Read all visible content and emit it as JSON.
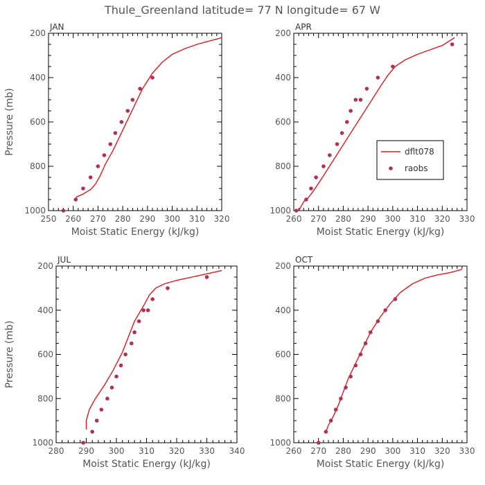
{
  "figure": {
    "title": "Thule_Greenland  latitude= 77 N longitude= 67 W",
    "ylabel": "Pressure (mb)",
    "xlabel": "Moist Static Energy (kJ/kg)",
    "colors": {
      "model": "#e8141c",
      "obs": "#b0305a",
      "axis": "#000000",
      "text": "#555555"
    }
  },
  "legend": {
    "model": "dflt078",
    "obs": "raobs",
    "panel": "APR"
  },
  "chart_data": [
    {
      "type": "line",
      "title": "JAN",
      "xlabel": "Moist Static Energy (kJ/kg)",
      "ylabel": "Pressure (mb)",
      "xlim": [
        250,
        320
      ],
      "ylim": [
        1000,
        200
      ],
      "xticks": [
        250,
        260,
        270,
        280,
        290,
        300,
        310,
        320
      ],
      "yticks": [
        200,
        400,
        600,
        800,
        1000
      ],
      "series": [
        {
          "name": "dflt078",
          "style": "line",
          "x": [
            261,
            264,
            267,
            269,
            271,
            273,
            276,
            279,
            282,
            285,
            288,
            292,
            296,
            300,
            305,
            310,
            315,
            320
          ],
          "y": [
            940,
            925,
            905,
            880,
            840,
            790,
            730,
            660,
            590,
            520,
            450,
            380,
            330,
            295,
            270,
            250,
            235,
            220
          ]
        },
        {
          "name": "raobs",
          "style": "marker",
          "x": [
            256,
            261,
            264,
            267,
            270,
            272.5,
            275,
            277,
            279.5,
            282,
            284,
            287,
            292
          ],
          "y": [
            1000,
            950,
            900,
            850,
            800,
            750,
            700,
            650,
            600,
            550,
            500,
            450,
            400
          ]
        }
      ]
    },
    {
      "type": "line",
      "title": "APR",
      "xlabel": "Moist Static Energy (kJ/kg)",
      "ylabel": "",
      "xlim": [
        260,
        330
      ],
      "ylim": [
        1000,
        200
      ],
      "xticks": [
        260,
        270,
        280,
        290,
        300,
        310,
        320,
        330
      ],
      "yticks": [
        200,
        400,
        600,
        800,
        1000
      ],
      "series": [
        {
          "name": "dflt078",
          "style": "line",
          "x": [
            262,
            264,
            266,
            268,
            271,
            275,
            279,
            283,
            287,
            291,
            295,
            298,
            301,
            305,
            310,
            315,
            320,
            325
          ],
          "y": [
            1000,
            960,
            940,
            910,
            860,
            790,
            720,
            650,
            580,
            510,
            440,
            390,
            350,
            320,
            295,
            275,
            255,
            220
          ]
        },
        {
          "name": "raobs",
          "style": "marker",
          "x": [
            261,
            265,
            267,
            269,
            272,
            274.5,
            277.5,
            279.5,
            281.5,
            283,
            285,
            287,
            289.5,
            294,
            300,
            324
          ],
          "y": [
            1000,
            950,
            900,
            850,
            800,
            750,
            700,
            650,
            600,
            550,
            500,
            500,
            450,
            400,
            350,
            250
          ]
        }
      ]
    },
    {
      "type": "line",
      "title": "JUL",
      "xlabel": "Moist Static Energy (kJ/kg)",
      "ylabel": "Pressure (mb)",
      "xlim": [
        280,
        340
      ],
      "ylim": [
        1000,
        200
      ],
      "xticks": [
        280,
        290,
        300,
        310,
        320,
        330,
        340
      ],
      "yticks": [
        200,
        400,
        600,
        800,
        1000
      ],
      "series": [
        {
          "name": "dflt078",
          "style": "line",
          "x": [
            290,
            290,
            291,
            293,
            296,
            299,
            302,
            304,
            306,
            309,
            311,
            313,
            316,
            320,
            325,
            330,
            335
          ],
          "y": [
            940,
            900,
            850,
            800,
            740,
            670,
            590,
            520,
            450,
            380,
            330,
            300,
            280,
            265,
            250,
            235,
            220
          ]
        },
        {
          "name": "raobs",
          "style": "marker",
          "x": [
            289,
            292,
            293.5,
            295,
            297,
            298.5,
            300,
            301.5,
            303,
            305,
            306,
            307.5,
            309,
            310.5,
            312,
            317,
            330
          ],
          "y": [
            1000,
            950,
            900,
            850,
            800,
            750,
            700,
            650,
            600,
            550,
            500,
            450,
            400,
            400,
            350,
            300,
            250
          ]
        }
      ]
    },
    {
      "type": "line",
      "title": "OCT",
      "xlabel": "Moist Static Energy (kJ/kg)",
      "ylabel": "",
      "xlim": [
        260,
        330
      ],
      "ylim": [
        1000,
        200
      ],
      "xticks": [
        260,
        270,
        280,
        290,
        300,
        310,
        320,
        330
      ],
      "yticks": [
        200,
        400,
        600,
        800,
        1000
      ],
      "series": [
        {
          "name": "dflt078",
          "style": "line",
          "x": [
            273,
            274,
            276,
            278,
            280,
            282,
            285,
            288,
            291,
            295,
            299,
            303,
            308,
            313,
            318,
            323,
            328
          ],
          "y": [
            950,
            920,
            880,
            830,
            770,
            710,
            640,
            570,
            500,
            430,
            370,
            320,
            280,
            255,
            240,
            230,
            215
          ]
        },
        {
          "name": "raobs",
          "style": "marker",
          "x": [
            270,
            273,
            275,
            277,
            279,
            281,
            283,
            285,
            287,
            289,
            291,
            294,
            297,
            301
          ],
          "y": [
            1000,
            950,
            900,
            850,
            800,
            750,
            700,
            650,
            600,
            550,
            500,
            450,
            400,
            350
          ]
        }
      ]
    }
  ]
}
